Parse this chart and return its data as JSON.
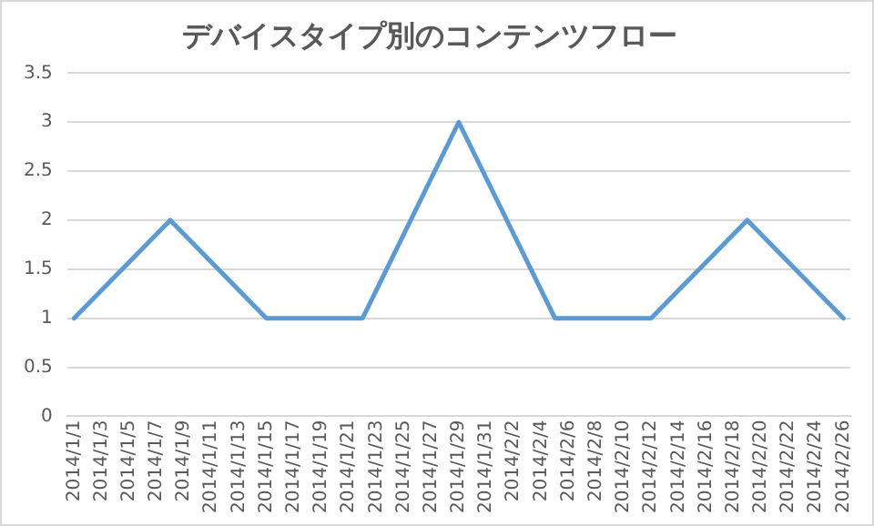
{
  "chart_data": {
    "type": "line",
    "title": "デバイスタイプ別のコンテンツフロー",
    "x": [
      "2014-01-01",
      "2014-01-08",
      "2014-01-15",
      "2014-01-22",
      "2014-01-29",
      "2014-02-05",
      "2014-02-12",
      "2014-02-19",
      "2014-02-26"
    ],
    "series": [
      {
        "color": "#5b9bd5",
        "values": [
          1,
          2,
          1,
          1,
          3,
          1,
          1,
          2,
          1
        ]
      }
    ],
    "xlim": [
      "2013-12-31T12:00",
      "2014-02-26T12:00"
    ],
    "xticks": [
      {
        "value": "2014-01-01",
        "label": "2014/1/1"
      },
      {
        "value": "2014-01-03",
        "label": "2014/1/3"
      },
      {
        "value": "2014-01-05",
        "label": "2014/1/5"
      },
      {
        "value": "2014-01-07",
        "label": "2014/1/7"
      },
      {
        "value": "2014-01-09",
        "label": "2014/1/9"
      },
      {
        "value": "2014-01-11",
        "label": "2014/1/11"
      },
      {
        "value": "2014-01-13",
        "label": "2014/1/13"
      },
      {
        "value": "2014-01-15",
        "label": "2014/1/15"
      },
      {
        "value": "2014-01-17",
        "label": "2014/1/17"
      },
      {
        "value": "2014-01-19",
        "label": "2014/1/19"
      },
      {
        "value": "2014-01-21",
        "label": "2014/1/21"
      },
      {
        "value": "2014-01-23",
        "label": "2014/1/23"
      },
      {
        "value": "2014-01-25",
        "label": "2014/1/25"
      },
      {
        "value": "2014-01-27",
        "label": "2014/1/27"
      },
      {
        "value": "2014-01-29",
        "label": "2014/1/29"
      },
      {
        "value": "2014-01-31",
        "label": "2014/1/31"
      },
      {
        "value": "2014-02-02",
        "label": "2014/2/2"
      },
      {
        "value": "2014-02-04",
        "label": "2014/2/4"
      },
      {
        "value": "2014-02-06",
        "label": "2014/2/6"
      },
      {
        "value": "2014-02-08",
        "label": "2014/2/8"
      },
      {
        "value": "2014-02-10",
        "label": "2014/2/10"
      },
      {
        "value": "2014-02-12",
        "label": "2014/2/12"
      },
      {
        "value": "2014-02-14",
        "label": "2014/2/14"
      },
      {
        "value": "2014-02-16",
        "label": "2014/2/16"
      },
      {
        "value": "2014-02-18",
        "label": "2014/2/18"
      },
      {
        "value": "2014-02-20",
        "label": "2014/2/20"
      },
      {
        "value": "2014-02-22",
        "label": "2014/2/22"
      },
      {
        "value": "2014-02-24",
        "label": "2014/2/24"
      },
      {
        "value": "2014-02-26",
        "label": "2014/2/26"
      }
    ],
    "ylim": [
      0,
      3.5
    ],
    "yticks": [
      0,
      0.5,
      1,
      1.5,
      2,
      2.5,
      3,
      3.5
    ],
    "grid": "y",
    "legend": false,
    "marker": "none",
    "line_style": "solid"
  }
}
